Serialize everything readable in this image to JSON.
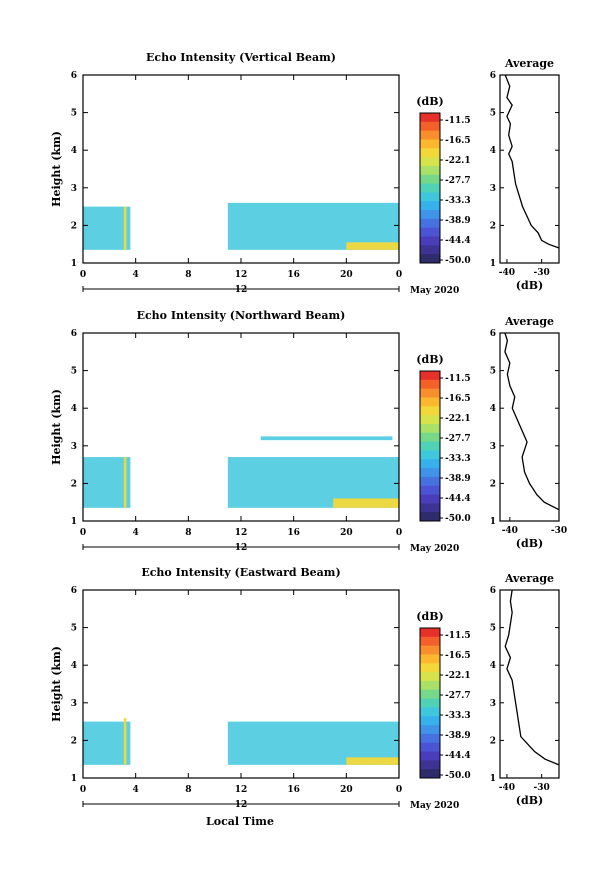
{
  "x_axis_label": "Local Time",
  "chart_data": [
    {
      "type": "heatmap",
      "title": "Echo Intensity (Vertical Beam)",
      "ylabel": "Height (km)",
      "xlim": [
        0,
        24
      ],
      "ylim": [
        1,
        6
      ],
      "x_ticks": [
        "0",
        "4",
        "8",
        "12",
        "16",
        "20",
        "0"
      ],
      "y_ticks": [
        "1",
        "2",
        "3",
        "4",
        "5",
        "6"
      ],
      "day_marker": "12",
      "date_label": "May 2020",
      "colorbar": {
        "unit_label": "(dB)",
        "tick_labels": [
          "-11.5",
          "-16.5",
          "-22.1",
          "-27.7",
          "-33.3",
          "-38.9",
          "-44.4",
          "-50.0"
        ],
        "colors": [
          "#e8302b",
          "#f4602a",
          "#f98e2c",
          "#fbb72e",
          "#f3d83a",
          "#d6e34a",
          "#a8e068",
          "#76d98a",
          "#4fd2b6",
          "#3fc7dd",
          "#36b1ec",
          "#3f93e8",
          "#4672e0",
          "#4b55d3",
          "#4a3db9",
          "#3d3393",
          "#2f2c6b"
        ]
      },
      "regions": [
        {
          "x": [
            0,
            3.6
          ],
          "y": [
            1.35,
            2.5
          ],
          "level": "weak"
        },
        {
          "x": [
            11,
            24
          ],
          "y": [
            1.35,
            2.6
          ],
          "level": "weak"
        },
        {
          "x": [
            3.1,
            3.3
          ],
          "y": [
            1.35,
            2.5
          ],
          "level": "strong"
        },
        {
          "x": [
            20,
            24
          ],
          "y": [
            1.35,
            1.55
          ],
          "level": "strong"
        }
      ],
      "profile": {
        "title": "Average",
        "xlabel": "(dB)",
        "xlim": [
          -42,
          -25
        ],
        "x_ticks": [
          "-40",
          "-30"
        ],
        "y_ticks": [
          "1",
          "2",
          "3",
          "4",
          "5",
          "6"
        ],
        "points": [
          [
            -24.9,
            1.4
          ],
          [
            -28,
            1.5
          ],
          [
            -30,
            1.6
          ],
          [
            -31,
            1.8
          ],
          [
            -33,
            2
          ],
          [
            -34,
            2.2
          ],
          [
            -35.5,
            2.5
          ],
          [
            -36.5,
            2.8
          ],
          [
            -37.5,
            3.1
          ],
          [
            -38,
            3.4
          ],
          [
            -38.5,
            3.7
          ],
          [
            -39.5,
            3.9
          ],
          [
            -38.5,
            4.1
          ],
          [
            -39.5,
            4.4
          ],
          [
            -39,
            4.7
          ],
          [
            -40,
            4.9
          ],
          [
            -38.5,
            5.2
          ],
          [
            -40,
            5.4
          ],
          [
            -39.2,
            5.7
          ],
          [
            -40.5,
            6
          ]
        ]
      }
    },
    {
      "type": "heatmap",
      "title": "Echo Intensity (Northward Beam)",
      "ylabel": "Height (km)",
      "xlim": [
        0,
        24
      ],
      "ylim": [
        1,
        6
      ],
      "x_ticks": [
        "0",
        "4",
        "8",
        "12",
        "16",
        "20",
        "0"
      ],
      "y_ticks": [
        "1",
        "2",
        "3",
        "4",
        "5",
        "6"
      ],
      "day_marker": "12",
      "date_label": "May 2020",
      "colorbar": {
        "unit_label": "(dB)",
        "tick_labels": [
          "-11.5",
          "-16.5",
          "-22.1",
          "-27.7",
          "-33.3",
          "-38.9",
          "-44.4",
          "-50.0"
        ],
        "colors": [
          "#e8302b",
          "#f4602a",
          "#f98e2c",
          "#fbb72e",
          "#f3d83a",
          "#d6e34a",
          "#a8e068",
          "#76d98a",
          "#4fd2b6",
          "#3fc7dd",
          "#36b1ec",
          "#3f93e8",
          "#4672e0",
          "#4b55d3",
          "#4a3db9",
          "#3d3393",
          "#2f2c6b"
        ]
      },
      "regions": [
        {
          "x": [
            0,
            3.6
          ],
          "y": [
            1.35,
            2.7
          ],
          "level": "weak"
        },
        {
          "x": [
            11,
            24
          ],
          "y": [
            1.35,
            2.7
          ],
          "level": "weak"
        },
        {
          "x": [
            3.1,
            3.3
          ],
          "y": [
            1.35,
            2.7
          ],
          "level": "strong"
        },
        {
          "x": [
            19,
            24
          ],
          "y": [
            1.35,
            1.6
          ],
          "level": "strong"
        },
        {
          "x": [
            13.5,
            23.5
          ],
          "y": [
            3.15,
            3.25
          ],
          "level": "weak"
        }
      ],
      "profile": {
        "title": "Average",
        "xlabel": "(dB)",
        "xlim": [
          -42,
          -30
        ],
        "x_ticks": [
          "-40",
          "-30"
        ],
        "y_ticks": [
          "1",
          "2",
          "3",
          "4",
          "5",
          "6"
        ],
        "points": [
          [
            -29.5,
            1.3
          ],
          [
            -33,
            1.5
          ],
          [
            -34.5,
            1.7
          ],
          [
            -36,
            2
          ],
          [
            -37,
            2.3
          ],
          [
            -37.5,
            2.7
          ],
          [
            -36.5,
            3.1
          ],
          [
            -37.5,
            3.4
          ],
          [
            -38.5,
            3.7
          ],
          [
            -39.5,
            4
          ],
          [
            -39,
            4.3
          ],
          [
            -40,
            4.6
          ],
          [
            -40.5,
            4.9
          ],
          [
            -40,
            5.2
          ],
          [
            -41,
            5.5
          ],
          [
            -40.5,
            5.8
          ],
          [
            -41,
            6
          ]
        ]
      }
    },
    {
      "type": "heatmap",
      "title": "Echo Intensity (Eastward Beam)",
      "ylabel": "Height (km)",
      "xlim": [
        0,
        24
      ],
      "ylim": [
        1,
        6
      ],
      "x_ticks": [
        "0",
        "4",
        "8",
        "12",
        "16",
        "20",
        "0"
      ],
      "y_ticks": [
        "1",
        "2",
        "3",
        "4",
        "5",
        "6"
      ],
      "day_marker": "12",
      "date_label": "May 2020",
      "colorbar": {
        "unit_label": "(dB)",
        "tick_labels": [
          "-11.5",
          "-16.5",
          "-22.1",
          "-27.7",
          "-33.3",
          "-38.9",
          "-44.4",
          "-50.0"
        ],
        "colors": [
          "#e8302b",
          "#f4602a",
          "#f98e2c",
          "#fbb72e",
          "#f3d83a",
          "#d6e34a",
          "#a8e068",
          "#76d98a",
          "#4fd2b6",
          "#3fc7dd",
          "#36b1ec",
          "#3f93e8",
          "#4672e0",
          "#4b55d3",
          "#4a3db9",
          "#3d3393",
          "#2f2c6b"
        ]
      },
      "regions": [
        {
          "x": [
            0,
            3.6
          ],
          "y": [
            1.35,
            2.5
          ],
          "level": "weak"
        },
        {
          "x": [
            11,
            24
          ],
          "y": [
            1.35,
            2.5
          ],
          "level": "weak"
        },
        {
          "x": [
            3.1,
            3.3
          ],
          "y": [
            1.35,
            2.6
          ],
          "level": "strong"
        },
        {
          "x": [
            20,
            24
          ],
          "y": [
            1.35,
            1.55
          ],
          "level": "strong"
        }
      ],
      "profile": {
        "title": "Average",
        "xlabel": "(dB)",
        "xlim": [
          -42,
          -25
        ],
        "x_ticks": [
          "-40",
          "-30"
        ],
        "y_ticks": [
          "1",
          "2",
          "3",
          "4",
          "5",
          "6"
        ],
        "points": [
          [
            -25,
            1.35
          ],
          [
            -29,
            1.5
          ],
          [
            -32,
            1.7
          ],
          [
            -34,
            1.9
          ],
          [
            -36,
            2.1
          ],
          [
            -36.5,
            2.4
          ],
          [
            -37,
            2.7
          ],
          [
            -37.5,
            3.0
          ],
          [
            -38,
            3.3
          ],
          [
            -38.5,
            3.6
          ],
          [
            -40,
            3.9
          ],
          [
            -39,
            4.2
          ],
          [
            -40.5,
            4.5
          ],
          [
            -39.5,
            4.8
          ],
          [
            -39,
            5.1
          ],
          [
            -38.5,
            5.4
          ],
          [
            -39,
            5.7
          ],
          [
            -38.5,
            6
          ]
        ]
      }
    }
  ]
}
